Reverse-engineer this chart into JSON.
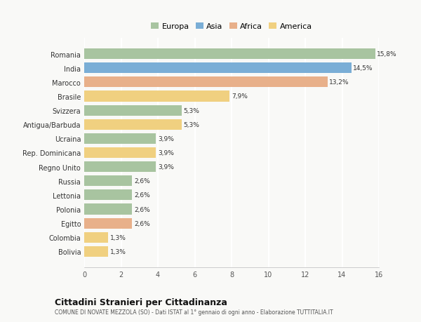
{
  "countries": [
    "Romania",
    "India",
    "Marocco",
    "Brasile",
    "Svizzera",
    "Antigua/Barbuda",
    "Ucraina",
    "Rep. Dominicana",
    "Regno Unito",
    "Russia",
    "Lettonia",
    "Polonia",
    "Egitto",
    "Colombia",
    "Bolivia"
  ],
  "values": [
    15.8,
    14.5,
    13.2,
    7.9,
    5.3,
    5.3,
    3.9,
    3.9,
    3.9,
    2.6,
    2.6,
    2.6,
    2.6,
    1.3,
    1.3
  ],
  "labels": [
    "15,8%",
    "14,5%",
    "13,2%",
    "7,9%",
    "5,3%",
    "5,3%",
    "3,9%",
    "3,9%",
    "3,9%",
    "2,6%",
    "2,6%",
    "2,6%",
    "2,6%",
    "1,3%",
    "1,3%"
  ],
  "continents": [
    "Europa",
    "Asia",
    "Africa",
    "America",
    "Europa",
    "America",
    "Europa",
    "America",
    "Europa",
    "Europa",
    "Europa",
    "Europa",
    "Africa",
    "America",
    "America"
  ],
  "colors": {
    "Europa": "#a8c4a0",
    "Asia": "#7aaed6",
    "Africa": "#e8b08a",
    "America": "#f0d080"
  },
  "legend_order": [
    "Europa",
    "Asia",
    "Africa",
    "America"
  ],
  "title": "Cittadini Stranieri per Cittadinanza",
  "subtitle": "COMUNE DI NOVATE MEZZOLA (SO) - Dati ISTAT al 1° gennaio di ogni anno - Elaborazione TUTTITALIA.IT",
  "xlim": [
    0,
    16
  ],
  "xticks": [
    0,
    2,
    4,
    6,
    8,
    10,
    12,
    14,
    16
  ],
  "bg_color": "#f9f9f7",
  "grid_color": "#ffffff"
}
